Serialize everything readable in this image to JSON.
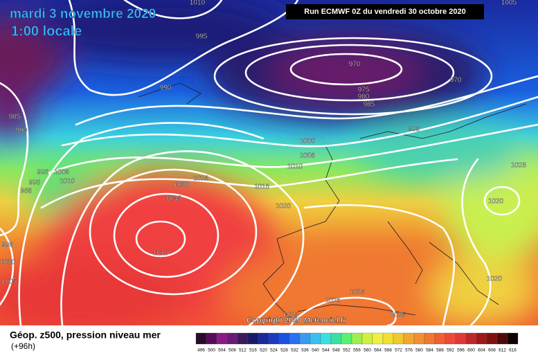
{
  "header": {
    "date": "mardi 3 novembre 2020",
    "time": "1:00 locale",
    "run": "Run ECMWF 0Z du vendredi 30 octobre 2020"
  },
  "isobar_labels": [
    "1010",
    "995",
    "990",
    "970",
    "975",
    "980",
    "985",
    "970",
    "985",
    "990",
    "995",
    "1000",
    "1005",
    "1010",
    "990",
    "1005",
    "1010",
    "990",
    "985",
    "1030",
    "1025",
    "1015",
    "1035",
    "1020",
    "1025",
    "1020",
    "1040",
    "995",
    "1000",
    "1005",
    "1020",
    "1025",
    "1025",
    "1025",
    "1025",
    "1005"
  ],
  "copyright": "Copyright 2020 Meteociel.fr",
  "footer": {
    "title": "Géop. z500, pression niveau mer",
    "step": "(+96h)"
  },
  "scale": {
    "values": [
      496,
      500,
      504,
      508,
      512,
      516,
      520,
      524,
      528,
      532,
      536,
      540,
      544,
      548,
      552,
      556,
      560,
      564,
      568,
      572,
      576,
      580,
      584,
      588,
      592,
      596,
      600,
      604,
      608,
      612,
      616
    ]
  }
}
